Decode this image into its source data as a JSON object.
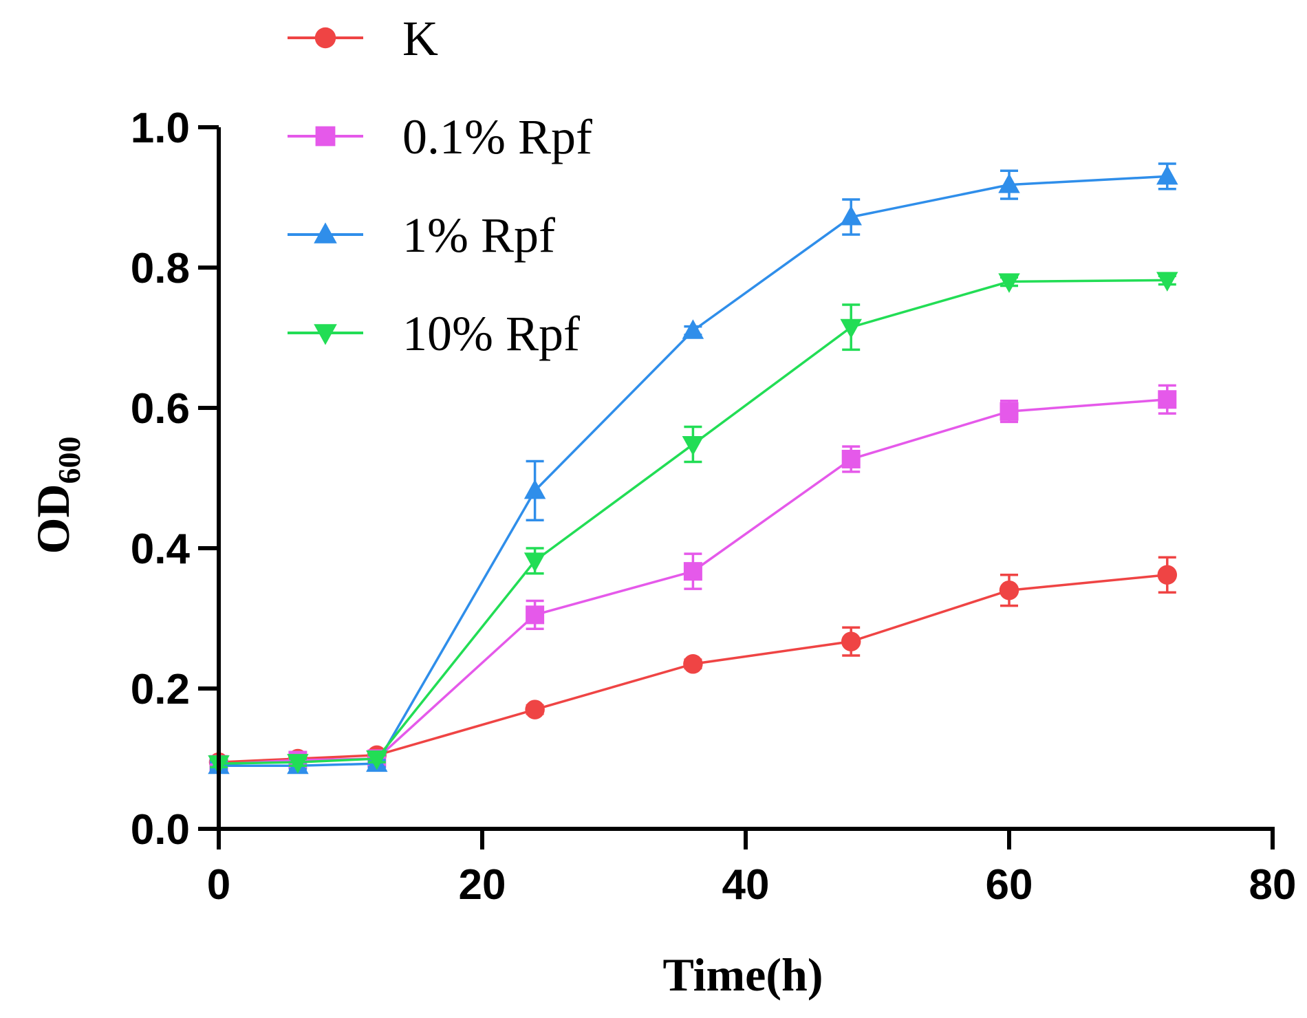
{
  "chart_data": {
    "type": "line",
    "title": "",
    "xlabel": "Time(h)",
    "ylabel": {
      "main": "OD",
      "subscript": "600"
    },
    "xlim": [
      0,
      80
    ],
    "ylim": [
      0,
      1.0
    ],
    "xticks": [
      0,
      20,
      40,
      60,
      80
    ],
    "xtick_labels": [
      "0",
      "20",
      "40",
      "60",
      "80"
    ],
    "yticks": [
      0,
      0.2,
      0.4,
      0.6,
      0.8,
      1.0
    ],
    "ytick_labels": [
      "0.0",
      "0.2",
      "0.4",
      "0.6",
      "0.8",
      "1.0"
    ],
    "grid": false,
    "legend_position": "top-left",
    "x": [
      0,
      6,
      12,
      24,
      36,
      48,
      60,
      72
    ],
    "series": [
      {
        "name": "K",
        "color": "#ef4444",
        "marker": "circle",
        "values": [
          0.095,
          0.1,
          0.105,
          0.17,
          0.235,
          0.267,
          0.34,
          0.362
        ],
        "errors": [
          0.005,
          0.005,
          0.005,
          0.006,
          0.006,
          0.02,
          0.022,
          0.025
        ]
      },
      {
        "name": "0.1% Rpf",
        "color": "#e559ea",
        "marker": "square",
        "values": [
          0.092,
          0.098,
          0.1,
          0.305,
          0.367,
          0.527,
          0.595,
          0.612
        ],
        "errors": [
          0.005,
          0.005,
          0.005,
          0.02,
          0.025,
          0.018,
          0.015,
          0.02
        ]
      },
      {
        "name": "1% Rpf",
        "color": "#2f8eea",
        "marker": "triangle-up",
        "values": [
          0.09,
          0.09,
          0.093,
          0.482,
          0.71,
          0.872,
          0.918,
          0.93
        ],
        "errors": [
          0.005,
          0.005,
          0.005,
          0.042,
          0.006,
          0.025,
          0.02,
          0.018
        ]
      },
      {
        "name": "10% Rpf",
        "color": "#22dd55",
        "marker": "triangle-down",
        "values": [
          0.093,
          0.095,
          0.1,
          0.382,
          0.548,
          0.715,
          0.78,
          0.782
        ],
        "errors": [
          0.005,
          0.005,
          0.005,
          0.018,
          0.025,
          0.032,
          0.006,
          0.006
        ]
      }
    ]
  }
}
